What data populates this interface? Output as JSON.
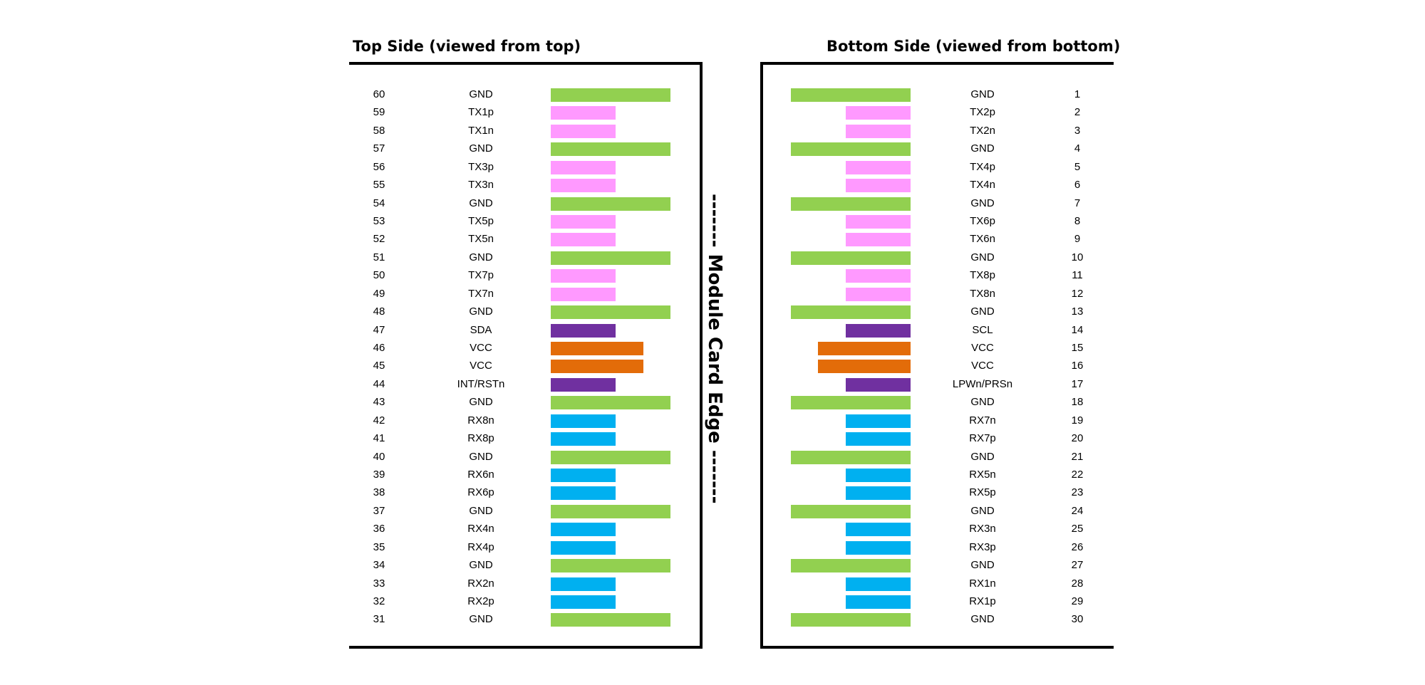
{
  "titles": {
    "top": "Top Side (viewed from top)",
    "bottom": "Bottom Side (viewed from bottom)"
  },
  "edge_label": "------- Module Card Edge -------",
  "colors": {
    "GND": "#92d050",
    "TX": "#ff99ff",
    "RX": "#00b0f0",
    "VCC": "#e36c09",
    "CTRL": "#7030a0"
  },
  "top_pins": [
    {
      "num": "60",
      "sig": "GND",
      "type": "GND"
    },
    {
      "num": "59",
      "sig": "TX1p",
      "type": "TX"
    },
    {
      "num": "58",
      "sig": "TX1n",
      "type": "TX"
    },
    {
      "num": "57",
      "sig": "GND",
      "type": "GND"
    },
    {
      "num": "56",
      "sig": "TX3p",
      "type": "TX"
    },
    {
      "num": "55",
      "sig": "TX3n",
      "type": "TX"
    },
    {
      "num": "54",
      "sig": "GND",
      "type": "GND"
    },
    {
      "num": "53",
      "sig": "TX5p",
      "type": "TX"
    },
    {
      "num": "52",
      "sig": "TX5n",
      "type": "TX"
    },
    {
      "num": "51",
      "sig": "GND",
      "type": "GND"
    },
    {
      "num": "50",
      "sig": "TX7p",
      "type": "TX"
    },
    {
      "num": "49",
      "sig": "TX7n",
      "type": "TX"
    },
    {
      "num": "48",
      "sig": "GND",
      "type": "GND"
    },
    {
      "num": "47",
      "sig": "SDA",
      "type": "CTRL"
    },
    {
      "num": "46",
      "sig": "VCC",
      "type": "VCC"
    },
    {
      "num": "45",
      "sig": "VCC",
      "type": "VCC"
    },
    {
      "num": "44",
      "sig": "INT/RSTn",
      "type": "CTRL"
    },
    {
      "num": "43",
      "sig": "GND",
      "type": "GND"
    },
    {
      "num": "42",
      "sig": "RX8n",
      "type": "RX"
    },
    {
      "num": "41",
      "sig": "RX8p",
      "type": "RX"
    },
    {
      "num": "40",
      "sig": "GND",
      "type": "GND"
    },
    {
      "num": "39",
      "sig": "RX6n",
      "type": "RX"
    },
    {
      "num": "38",
      "sig": "RX6p",
      "type": "RX"
    },
    {
      "num": "37",
      "sig": "GND",
      "type": "GND"
    },
    {
      "num": "36",
      "sig": "RX4n",
      "type": "RX"
    },
    {
      "num": "35",
      "sig": "RX4p",
      "type": "RX"
    },
    {
      "num": "34",
      "sig": "GND",
      "type": "GND"
    },
    {
      "num": "33",
      "sig": "RX2n",
      "type": "RX"
    },
    {
      "num": "32",
      "sig": "RX2p",
      "type": "RX"
    },
    {
      "num": "31",
      "sig": "GND",
      "type": "GND"
    }
  ],
  "bottom_pins": [
    {
      "num": "1",
      "sig": "GND",
      "type": "GND"
    },
    {
      "num": "2",
      "sig": "TX2p",
      "type": "TX"
    },
    {
      "num": "3",
      "sig": "TX2n",
      "type": "TX"
    },
    {
      "num": "4",
      "sig": "GND",
      "type": "GND"
    },
    {
      "num": "5",
      "sig": "TX4p",
      "type": "TX"
    },
    {
      "num": "6",
      "sig": "TX4n",
      "type": "TX"
    },
    {
      "num": "7",
      "sig": "GND",
      "type": "GND"
    },
    {
      "num": "8",
      "sig": "TX6p",
      "type": "TX"
    },
    {
      "num": "9",
      "sig": "TX6n",
      "type": "TX"
    },
    {
      "num": "10",
      "sig": "GND",
      "type": "GND"
    },
    {
      "num": "11",
      "sig": "TX8p",
      "type": "TX"
    },
    {
      "num": "12",
      "sig": "TX8n",
      "type": "TX"
    },
    {
      "num": "13",
      "sig": "GND",
      "type": "GND"
    },
    {
      "num": "14",
      "sig": "SCL",
      "type": "CTRL"
    },
    {
      "num": "15",
      "sig": "VCC",
      "type": "VCC"
    },
    {
      "num": "16",
      "sig": "VCC",
      "type": "VCC"
    },
    {
      "num": "17",
      "sig": "LPWn/PRSn",
      "type": "CTRL"
    },
    {
      "num": "18",
      "sig": "GND",
      "type": "GND"
    },
    {
      "num": "19",
      "sig": "RX7n",
      "type": "RX"
    },
    {
      "num": "20",
      "sig": "RX7p",
      "type": "RX"
    },
    {
      "num": "21",
      "sig": "GND",
      "type": "GND"
    },
    {
      "num": "22",
      "sig": "RX5n",
      "type": "RX"
    },
    {
      "num": "23",
      "sig": "RX5p",
      "type": "RX"
    },
    {
      "num": "24",
      "sig": "GND",
      "type": "GND"
    },
    {
      "num": "25",
      "sig": "RX3n",
      "type": "RX"
    },
    {
      "num": "26",
      "sig": "RX3p",
      "type": "RX"
    },
    {
      "num": "27",
      "sig": "GND",
      "type": "GND"
    },
    {
      "num": "28",
      "sig": "RX1n",
      "type": "RX"
    },
    {
      "num": "29",
      "sig": "RX1p",
      "type": "RX"
    },
    {
      "num": "30",
      "sig": "GND",
      "type": "GND"
    }
  ]
}
